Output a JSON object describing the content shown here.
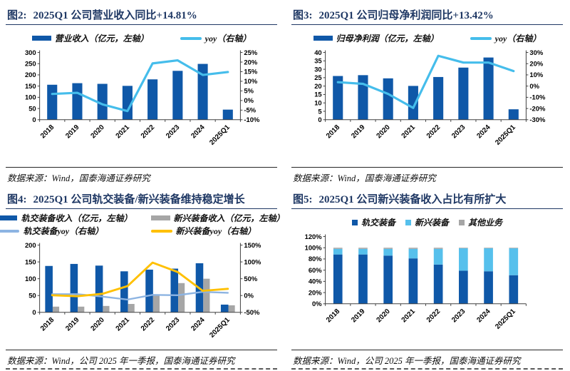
{
  "colors": {
    "bar_blue": "#0F58A8",
    "line_blue": "#45BDEB",
    "pale_blue": "#8DB4E2",
    "orange": "#FFC000",
    "gray": "#A6A6A6",
    "light_blue": "#56C0EC",
    "title_navy": "#1F3864",
    "axis": "#404040"
  },
  "figures": [
    {
      "prefix": "图2:",
      "source": "数据来源：Wind，国泰海通证券研究"
    },
    {
      "prefix": "图3:",
      "source": "数据来源：Wind，国泰海通证券研究"
    },
    {
      "prefix": "图4:",
      "source": "数据来源：Wind，公司 2025 年一季报，国泰海通证券研究"
    },
    {
      "prefix": "图5:",
      "source": "数据来源：Wind，公司 2025 年一季报，国泰海通证券研究"
    }
  ],
  "chart_data": [
    {
      "type": "bar+line",
      "title": "2025Q1 公司营业收入同比+14.81%",
      "categories": [
        "2018",
        "2019",
        "2020",
        "2021",
        "2022",
        "2023",
        "2024",
        "2025Q1"
      ],
      "bar_mode": "single",
      "bar_series": [
        {
          "name": "营业收入（亿元，左轴）",
          "color": "bar_blue",
          "values": [
            156,
            163,
            160,
            151,
            180,
            218,
            249,
            45
          ]
        }
      ],
      "line_series": [
        {
          "name": "yoy（右轴）",
          "color": "line_blue",
          "axis": "right",
          "values": [
            3.4,
            4.0,
            -2.0,
            -5.5,
            19.3,
            20.9,
            13.3,
            14.81
          ]
        }
      ],
      "left_axis": {
        "min": 0,
        "max": 300,
        "step": 50,
        "format": "number"
      },
      "right_axis": {
        "min": -10,
        "max": 25,
        "step": 5,
        "format": "percent"
      },
      "legend_rows": [
        [
          {
            "swatch": "bar",
            "color": "bar_blue",
            "label": "营业收入（亿元，左轴）"
          },
          {
            "swatch": "line",
            "color": "line_blue",
            "label": "yoy（右轴）"
          }
        ]
      ]
    },
    {
      "type": "bar+line",
      "title": "2025Q1 公司归母净利润同比+13.42%",
      "categories": [
        "2018",
        "2019",
        "2020",
        "2021",
        "2022",
        "2023",
        "2024",
        "2025Q1"
      ],
      "bar_mode": "single",
      "bar_series": [
        {
          "name": "归母净利润（亿元，左轴）",
          "color": "bar_blue",
          "values": [
            26.0,
            26.5,
            24.6,
            20.1,
            25.4,
            31.0,
            37.0,
            6.2
          ]
        }
      ],
      "line_series": [
        {
          "name": "yoy（右轴）",
          "color": "line_blue",
          "axis": "right",
          "values": [
            3.5,
            2.0,
            -7.0,
            -19.5,
            27.0,
            21.0,
            21.0,
            13.42
          ]
        }
      ],
      "left_axis": {
        "min": 0,
        "max": 40,
        "step": 5,
        "format": "number"
      },
      "right_axis": {
        "min": -30,
        "max": 30,
        "step": 10,
        "format": "percent"
      },
      "legend_rows": [
        [
          {
            "swatch": "bar",
            "color": "bar_blue",
            "label": "归母净利润（亿元，左轴）"
          },
          {
            "swatch": "line",
            "color": "line_blue",
            "label": "yoy（右轴）"
          }
        ]
      ]
    },
    {
      "type": "bar+line",
      "title": "2025Q1 公司轨交装备/新兴装备维持稳定增长",
      "categories": [
        "2018",
        "2019",
        "2020",
        "2021",
        "2022",
        "2023",
        "2024",
        "2025Q1"
      ],
      "bar_mode": "group",
      "bar_series": [
        {
          "name": "轨交装备收入（亿元，左轴）",
          "color": "bar_blue",
          "values": [
            138,
            144,
            139,
            122,
            127,
            130,
            146,
            23
          ]
        },
        {
          "name": "新兴装备收入（亿元，左轴）",
          "color": "gray",
          "values": [
            17,
            17,
            19,
            25,
            52,
            87,
            100,
            21
          ]
        }
      ],
      "line_series": [
        {
          "name": "轨交装备yoy（右轴）",
          "color": "pale_blue",
          "axis": "right",
          "values": [
            4,
            4,
            -3,
            -12,
            2,
            1,
            11,
            8
          ]
        },
        {
          "name": "新兴装备yoy（右轴）",
          "color": "orange",
          "axis": "right",
          "values": [
            1,
            -2,
            5,
            28,
            98,
            70,
            14,
            20
          ]
        }
      ],
      "left_axis": {
        "min": 0,
        "max": 200,
        "step": 50,
        "format": "number"
      },
      "right_axis": {
        "min": -50,
        "max": 150,
        "step": 50,
        "format": "percent"
      },
      "legend_rows": [
        [
          {
            "swatch": "bar",
            "color": "bar_blue",
            "label": "轨交装备收入（亿元，左轴）"
          },
          {
            "swatch": "bar",
            "color": "gray",
            "label": "新兴装备收入（亿元，左轴）"
          }
        ],
        [
          {
            "swatch": "line",
            "color": "pale_blue",
            "label": "轨交装备yoy（右轴）"
          },
          {
            "swatch": "line",
            "color": "orange",
            "label": "新兴装备yoy（右轴）"
          }
        ]
      ]
    },
    {
      "type": "stacked-bar",
      "title": "2025Q1 公司新兴装备收入占比有所扩大",
      "categories": [
        "2018",
        "2019",
        "2020",
        "2021",
        "2022",
        "2023",
        "2024",
        "2025Q1"
      ],
      "bar_mode": "stack",
      "bar_series": [
        {
          "name": "轨交装备",
          "color": "bar_blue",
          "values": [
            88,
            88,
            86,
            81,
            70,
            59,
            58,
            51
          ]
        },
        {
          "name": "新兴装备",
          "color": "light_blue",
          "values": [
            10,
            10,
            12,
            17,
            28,
            40,
            41,
            48
          ]
        },
        {
          "name": "其他业务",
          "color": "gray",
          "values": [
            2,
            2,
            2,
            2,
            2,
            1,
            1,
            1
          ]
        }
      ],
      "line_series": [],
      "left_axis": {
        "min": 0,
        "max": 120,
        "step": 20,
        "format": "percent"
      },
      "right_axis": null,
      "legend_rows": [
        [
          {
            "swatch": "square",
            "color": "bar_blue",
            "label": "轨交装备"
          },
          {
            "swatch": "square",
            "color": "light_blue",
            "label": "新兴装备"
          },
          {
            "swatch": "square",
            "color": "gray",
            "label": "其他业务"
          }
        ]
      ]
    }
  ]
}
